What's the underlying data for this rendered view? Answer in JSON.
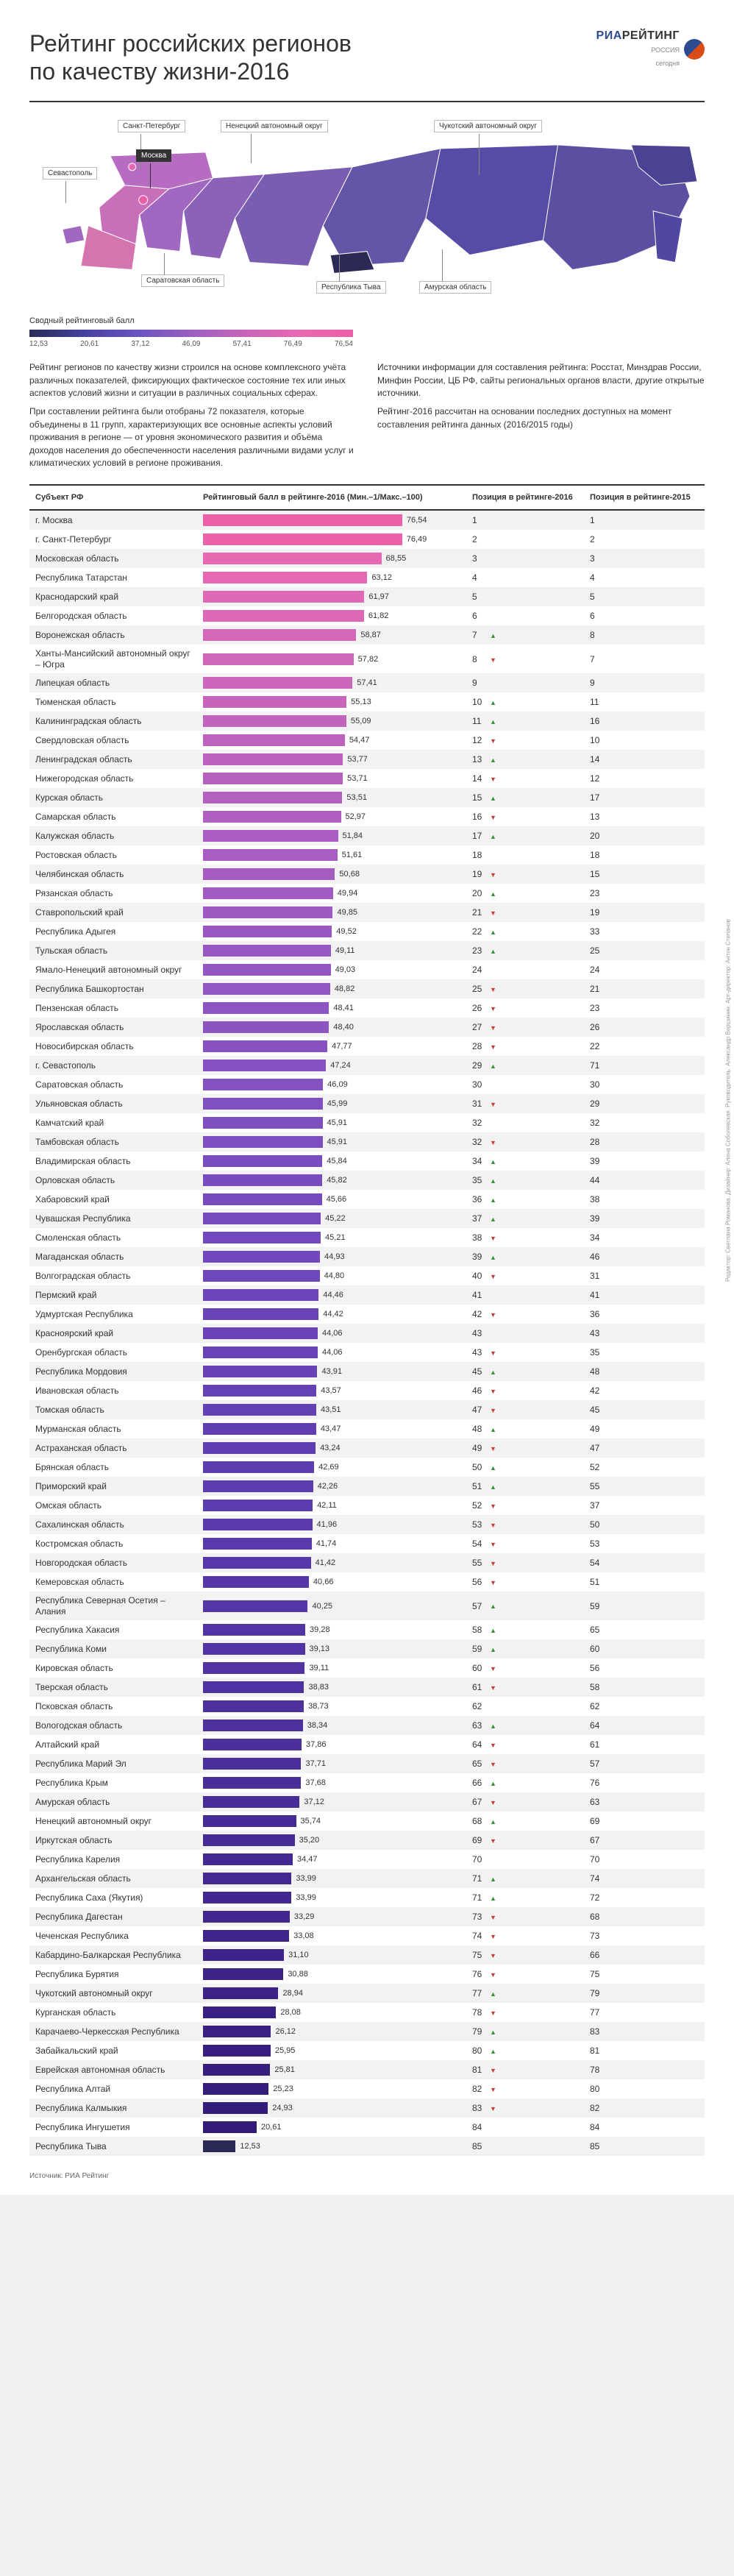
{
  "title": "Рейтинг российских регионов\nпо качеству жизни-2016",
  "logo": {
    "brand": "РИА",
    "brand2": "РЕЙТИНГ",
    "sub1": "РОССИЯ",
    "sub2": "сегодня"
  },
  "map": {
    "callouts": {
      "spb": "Санкт-Петербург",
      "nen": "Ненецкий автономный округ",
      "chk": "Чукотский автономный округ",
      "sev": "Севастополь",
      "msk": "Москва",
      "sar": "Саратовская область",
      "tyv": "Республика Тыва",
      "amu": "Амурская область"
    },
    "map_colors": {
      "far_east": "#5a4fa0",
      "siberia_e": "#6555a8",
      "siberia_w": "#7a5cb0",
      "ural": "#8b62b8",
      "volga": "#a068c0",
      "central": "#c76fb8",
      "nw": "#b66cc0",
      "south": "#d575b0",
      "moscow": "#ec5fa8",
      "spb": "#e868b2",
      "tyva": "#2a2a55",
      "chuk": "#4a4292",
      "kam": "#5048a0",
      "yak": "#554ca5"
    }
  },
  "legend": {
    "label": "Сводный рейтинговый балл",
    "ticks": [
      "12,53",
      "20,61",
      "37,12",
      "46,09",
      "57,41",
      "76,49",
      "76,54"
    ],
    "gradient": [
      "#2a2a55",
      "#4540a0",
      "#6a54c0",
      "#9a5fc0",
      "#c865b8",
      "#e868b2",
      "#ec5fa8"
    ]
  },
  "description": {
    "p1": "Рейтинг регионов по качеству жизни строился на основе комплексного учёта различных показателей, фиксирующих фактическое состояние тех или иных аспектов условий жизни и ситуации в различных социальных сферах.",
    "p2": "При составлении рейтинга были отобраны 72 показателя, которые объединены в 11 групп, характеризующих все основные аспекты условий проживания в регионе — от уровня экономического развития и объёма доходов населения до обеспеченности населения различными видами услуг и климатических условий в регионе проживания.",
    "p3": "Источники информации для составления рейтинга: Росстат, Минздрав России, Минфин России, ЦБ РФ, сайты региональных органов власти, другие открытые источники.",
    "p4": "Рейтинг-2016 рассчитан на основании последних доступных на момент составления рейтинга данных (2016/2015 годы)"
  },
  "columns": {
    "name": "Субъект РФ",
    "score": "Рейтинговый балл в рейтинге-2016 (Мин.–1/Макс.–100)",
    "pos16": "Позиция в рейтинге-2016",
    "pos15": "Позиция в рейтинге-2015"
  },
  "score_min": 0,
  "score_max": 100,
  "rows": [
    {
      "name": "г. Москва",
      "score": "76,54",
      "v": 76.54,
      "color": "#ec5fa8",
      "p16": 1,
      "p15": 1,
      "t": ""
    },
    {
      "name": "г. Санкт-Петербург",
      "score": "76,49",
      "v": 76.49,
      "color": "#ec62aa",
      "p16": 2,
      "p15": 2,
      "t": ""
    },
    {
      "name": "Московская область",
      "score": "68,55",
      "v": 68.55,
      "color": "#e868b2",
      "p16": 3,
      "p15": 3,
      "t": ""
    },
    {
      "name": "Республика Татарстан",
      "score": "63,12",
      "v": 63.12,
      "color": "#e468b4",
      "p16": 4,
      "p15": 4,
      "t": ""
    },
    {
      "name": "Краснодарский край",
      "score": "61,97",
      "v": 61.97,
      "color": "#e069b6",
      "p16": 5,
      "p15": 5,
      "t": ""
    },
    {
      "name": "Белгородская область",
      "score": "61,82",
      "v": 61.82,
      "color": "#dc68b6",
      "p16": 6,
      "p15": 6,
      "t": ""
    },
    {
      "name": "Воронежская область",
      "score": "58,87",
      "v": 58.87,
      "color": "#d567b8",
      "p16": 7,
      "p15": 8,
      "t": "up"
    },
    {
      "name": "Ханты-Мансийский автономный округ – Югра",
      "score": "57,82",
      "v": 57.82,
      "color": "#d066b8",
      "p16": 8,
      "p15": 7,
      "t": "dn"
    },
    {
      "name": "Липецкая область",
      "score": "57,41",
      "v": 57.41,
      "color": "#cc66ba",
      "p16": 9,
      "p15": 9,
      "t": ""
    },
    {
      "name": "Тюменская область",
      "score": "55,13",
      "v": 55.13,
      "color": "#c665bb",
      "p16": 10,
      "p15": 11,
      "t": "up"
    },
    {
      "name": "Калининградская область",
      "score": "55,09",
      "v": 55.09,
      "color": "#c264bc",
      "p16": 11,
      "p15": 16,
      "t": "up"
    },
    {
      "name": "Свердловская область",
      "score": "54,47",
      "v": 54.47,
      "color": "#be63bd",
      "p16": 12,
      "p15": 10,
      "t": "dn"
    },
    {
      "name": "Ленинградская область",
      "score": "53,77",
      "v": 53.77,
      "color": "#ba62be",
      "p16": 13,
      "p15": 14,
      "t": "up"
    },
    {
      "name": "Нижегородская область",
      "score": "53,71",
      "v": 53.71,
      "color": "#b761bf",
      "p16": 14,
      "p15": 12,
      "t": "dn"
    },
    {
      "name": "Курская область",
      "score": "53,51",
      "v": 53.51,
      "color": "#b360c0",
      "p16": 15,
      "p15": 17,
      "t": "up"
    },
    {
      "name": "Самарская область",
      "score": "52,97",
      "v": 52.97,
      "color": "#af5fc0",
      "p16": 16,
      "p15": 13,
      "t": "dn"
    },
    {
      "name": "Калужская область",
      "score": "51,84",
      "v": 51.84,
      "color": "#ab5ec1",
      "p16": 17,
      "p15": 20,
      "t": "up"
    },
    {
      "name": "Ростовская область",
      "score": "51,61",
      "v": 51.61,
      "color": "#a85dc1",
      "p16": 18,
      "p15": 18,
      "t": ""
    },
    {
      "name": "Челябинская область",
      "score": "50,68",
      "v": 50.68,
      "color": "#a45cc2",
      "p16": 19,
      "p15": 15,
      "t": "dn"
    },
    {
      "name": "Рязанская область",
      "score": "49,94",
      "v": 49.94,
      "color": "#a15bc2",
      "p16": 20,
      "p15": 23,
      "t": "up"
    },
    {
      "name": "Ставропольский край",
      "score": "49,85",
      "v": 49.85,
      "color": "#9d5ac2",
      "p16": 21,
      "p15": 19,
      "t": "dn"
    },
    {
      "name": "Республика Адыгея",
      "score": "49,52",
      "v": 49.52,
      "color": "#9a59c2",
      "p16": 22,
      "p15": 33,
      "t": "up"
    },
    {
      "name": "Тульская область",
      "score": "49,11",
      "v": 49.11,
      "color": "#9758c2",
      "p16": 23,
      "p15": 25,
      "t": "up"
    },
    {
      "name": "Ямало-Ненецкий автономный округ",
      "score": "49,03",
      "v": 49.03,
      "color": "#9457c2",
      "p16": 24,
      "p15": 24,
      "t": ""
    },
    {
      "name": "Республика Башкортостан",
      "score": "48,82",
      "v": 48.82,
      "color": "#9156c2",
      "p16": 25,
      "p15": 21,
      "t": "dn"
    },
    {
      "name": "Пензенская область",
      "score": "48,41",
      "v": 48.41,
      "color": "#8e55c2",
      "p16": 26,
      "p15": 23,
      "t": "dn"
    },
    {
      "name": "Ярославская область",
      "score": "48,40",
      "v": 48.4,
      "color": "#8b54c1",
      "p16": 27,
      "p15": 26,
      "t": "dn"
    },
    {
      "name": "Новосибирская область",
      "score": "47,77",
      "v": 47.77,
      "color": "#8853c1",
      "p16": 28,
      "p15": 22,
      "t": "dn"
    },
    {
      "name": "г. Севастополь",
      "score": "47,24",
      "v": 47.24,
      "color": "#8652c1",
      "p16": 29,
      "p15": 71,
      "t": "up"
    },
    {
      "name": "Саратовская область",
      "score": "46,09",
      "v": 46.09,
      "color": "#8351c0",
      "p16": 30,
      "p15": 30,
      "t": ""
    },
    {
      "name": "Ульяновская область",
      "score": "45,99",
      "v": 45.99,
      "color": "#8150c0",
      "p16": 31,
      "p15": 29,
      "t": "dn"
    },
    {
      "name": "Камчатский край",
      "score": "45,91",
      "v": 45.91,
      "color": "#7e4fbf",
      "p16": 32,
      "p15": 32,
      "t": ""
    },
    {
      "name": "Тамбовская область",
      "score": "45,91",
      "v": 45.91,
      "color": "#7c4ebf",
      "p16": 32,
      "p15": 28,
      "t": "dn"
    },
    {
      "name": "Владимирская область",
      "score": "45,84",
      "v": 45.84,
      "color": "#7a4dbe",
      "p16": 34,
      "p15": 39,
      "t": "up"
    },
    {
      "name": "Орловская область",
      "score": "45,82",
      "v": 45.82,
      "color": "#784cbe",
      "p16": 35,
      "p15": 44,
      "t": "up"
    },
    {
      "name": "Хабаровский край",
      "score": "45,66",
      "v": 45.66,
      "color": "#764bbd",
      "p16": 36,
      "p15": 38,
      "t": "up"
    },
    {
      "name": "Чувашская Республика",
      "score": "45,22",
      "v": 45.22,
      "color": "#744abc",
      "p16": 37,
      "p15": 39,
      "t": "up"
    },
    {
      "name": "Смоленская область",
      "score": "45,21",
      "v": 45.21,
      "color": "#7249bc",
      "p16": 38,
      "p15": 34,
      "t": "dn"
    },
    {
      "name": "Магаданская область",
      "score": "44,93",
      "v": 44.93,
      "color": "#7048bb",
      "p16": 39,
      "p15": 46,
      "t": "up"
    },
    {
      "name": "Волгоградская область",
      "score": "44,80",
      "v": 44.8,
      "color": "#6e47ba",
      "p16": 40,
      "p15": 31,
      "t": "dn"
    },
    {
      "name": "Пермский край",
      "score": "44,46",
      "v": 44.46,
      "color": "#6c46b9",
      "p16": 41,
      "p15": 41,
      "t": ""
    },
    {
      "name": "Удмуртская Республика",
      "score": "44,42",
      "v": 44.42,
      "color": "#6a45b8",
      "p16": 42,
      "p15": 36,
      "t": "dn"
    },
    {
      "name": "Красноярский край",
      "score": "44,06",
      "v": 44.06,
      "color": "#6944b7",
      "p16": 43,
      "p15": 43,
      "t": ""
    },
    {
      "name": "Оренбургская область",
      "score": "44,06",
      "v": 44.06,
      "color": "#6743b6",
      "p16": 43,
      "p15": 35,
      "t": "dn"
    },
    {
      "name": "Республика Мордовия",
      "score": "43,91",
      "v": 43.91,
      "color": "#6642b5",
      "p16": 45,
      "p15": 48,
      "t": "up"
    },
    {
      "name": "Ивановская область",
      "score": "43,57",
      "v": 43.57,
      "color": "#6441b4",
      "p16": 46,
      "p15": 42,
      "t": "dn"
    },
    {
      "name": "Томская область",
      "score": "43,51",
      "v": 43.51,
      "color": "#6340b3",
      "p16": 47,
      "p15": 45,
      "t": "dn"
    },
    {
      "name": "Мурманская область",
      "score": "43,47",
      "v": 43.47,
      "color": "#613fb2",
      "p16": 48,
      "p15": 49,
      "t": "up"
    },
    {
      "name": "Астраханская область",
      "score": "43,24",
      "v": 43.24,
      "color": "#603eb1",
      "p16": 49,
      "p15": 47,
      "t": "dn"
    },
    {
      "name": "Брянская область",
      "score": "42,69",
      "v": 42.69,
      "color": "#5e3db0",
      "p16": 50,
      "p15": 52,
      "t": "up"
    },
    {
      "name": "Приморский край",
      "score": "42,26",
      "v": 42.26,
      "color": "#5d3caf",
      "p16": 51,
      "p15": 55,
      "t": "up"
    },
    {
      "name": "Омская область",
      "score": "42,11",
      "v": 42.11,
      "color": "#5b3bad",
      "p16": 52,
      "p15": 37,
      "t": "dn"
    },
    {
      "name": "Сахалинская область",
      "score": "41,96",
      "v": 41.96,
      "color": "#5a3aac",
      "p16": 53,
      "p15": 50,
      "t": "dn"
    },
    {
      "name": "Костромская область",
      "score": "41,74",
      "v": 41.74,
      "color": "#5939ab",
      "p16": 54,
      "p15": 53,
      "t": "dn"
    },
    {
      "name": "Новгородская область",
      "score": "41,42",
      "v": 41.42,
      "color": "#5738a9",
      "p16": 55,
      "p15": 54,
      "t": "dn"
    },
    {
      "name": "Кемеровская область",
      "score": "40,66",
      "v": 40.66,
      "color": "#5637a8",
      "p16": 56,
      "p15": 51,
      "t": "dn"
    },
    {
      "name": "Республика Северная Осетия – Алания",
      "score": "40,25",
      "v": 40.25,
      "color": "#5536a7",
      "p16": 57,
      "p15": 59,
      "t": "up"
    },
    {
      "name": "Республика Хакасия",
      "score": "39,28",
      "v": 39.28,
      "color": "#5335a5",
      "p16": 58,
      "p15": 65,
      "t": "up"
    },
    {
      "name": "Республика Коми",
      "score": "39,13",
      "v": 39.13,
      "color": "#5234a4",
      "p16": 59,
      "p15": 60,
      "t": "up"
    },
    {
      "name": "Кировская область",
      "score": "39,11",
      "v": 39.11,
      "color": "#5133a2",
      "p16": 60,
      "p15": 56,
      "t": "dn"
    },
    {
      "name": "Тверская область",
      "score": "38,83",
      "v": 38.83,
      "color": "#4f32a1",
      "p16": 61,
      "p15": 58,
      "t": "dn"
    },
    {
      "name": "Псковская область",
      "score": "38,73",
      "v": 38.73,
      "color": "#4e319f",
      "p16": 62,
      "p15": 62,
      "t": ""
    },
    {
      "name": "Вологодская область",
      "score": "38,34",
      "v": 38.34,
      "color": "#4d309e",
      "p16": 63,
      "p15": 64,
      "t": "up"
    },
    {
      "name": "Алтайский край",
      "score": "37,86",
      "v": 37.86,
      "color": "#4b2f9c",
      "p16": 64,
      "p15": 61,
      "t": "dn"
    },
    {
      "name": "Республика Марий Эл",
      "score": "37,71",
      "v": 37.71,
      "color": "#4a2e9b",
      "p16": 65,
      "p15": 57,
      "t": "dn"
    },
    {
      "name": "Республика Крым",
      "score": "37,68",
      "v": 37.68,
      "color": "#492d99",
      "p16": 66,
      "p15": 76,
      "t": "up"
    },
    {
      "name": "Амурская область",
      "score": "37,12",
      "v": 37.12,
      "color": "#482c97",
      "p16": 67,
      "p15": 63,
      "t": "dn"
    },
    {
      "name": "Ненецкий автономный округ",
      "score": "35,74",
      "v": 35.74,
      "color": "#462b96",
      "p16": 68,
      "p15": 69,
      "t": "up"
    },
    {
      "name": "Иркутская область",
      "score": "35,20",
      "v": 35.2,
      "color": "#452a94",
      "p16": 69,
      "p15": 67,
      "t": "dn"
    },
    {
      "name": "Республика Карелия",
      "score": "34,47",
      "v": 34.47,
      "color": "#442992",
      "p16": 70,
      "p15": 70,
      "t": ""
    },
    {
      "name": "Архангельская область",
      "score": "33,99",
      "v": 33.99,
      "color": "#432891",
      "p16": 71,
      "p15": 74,
      "t": "up"
    },
    {
      "name": "Республика Саха (Якутия)",
      "score": "33,99",
      "v": 33.99,
      "color": "#41278f",
      "p16": 71,
      "p15": 72,
      "t": "up"
    },
    {
      "name": "Республика Дагестан",
      "score": "33,29",
      "v": 33.29,
      "color": "#40268d",
      "p16": 73,
      "p15": 68,
      "t": "dn"
    },
    {
      "name": "Чеченская Республика",
      "score": "33,08",
      "v": 33.08,
      "color": "#3f258b",
      "p16": 74,
      "p15": 73,
      "t": "dn"
    },
    {
      "name": "Кабардино-Балкарская Республика",
      "score": "31,10",
      "v": 31.1,
      "color": "#3e248a",
      "p16": 75,
      "p15": 66,
      "t": "dn"
    },
    {
      "name": "Республика Бурятия",
      "score": "30,88",
      "v": 30.88,
      "color": "#3c2388",
      "p16": 76,
      "p15": 75,
      "t": "dn"
    },
    {
      "name": "Чукотский автономный округ",
      "score": "28,94",
      "v": 28.94,
      "color": "#3b2286",
      "p16": 77,
      "p15": 79,
      "t": "up"
    },
    {
      "name": "Курганская область",
      "score": "28,08",
      "v": 28.08,
      "color": "#3a2184",
      "p16": 78,
      "p15": 77,
      "t": "dn"
    },
    {
      "name": "Карачаево-Черкесская Республика",
      "score": "26,12",
      "v": 26.12,
      "color": "#392082",
      "p16": 79,
      "p15": 83,
      "t": "up"
    },
    {
      "name": "Забайкальский край",
      "score": "25,95",
      "v": 25.95,
      "color": "#371f80",
      "p16": 80,
      "p15": 81,
      "t": "up"
    },
    {
      "name": "Еврейская автономная область",
      "score": "25,81",
      "v": 25.81,
      "color": "#361e7e",
      "p16": 81,
      "p15": 78,
      "t": "dn"
    },
    {
      "name": "Республика Алтай",
      "score": "25,23",
      "v": 25.23,
      "color": "#351d7c",
      "p16": 82,
      "p15": 80,
      "t": "dn"
    },
    {
      "name": "Республика Калмыкия",
      "score": "24,93",
      "v": 24.93,
      "color": "#341c7a",
      "p16": 83,
      "p15": 82,
      "t": "dn"
    },
    {
      "name": "Республика Ингушетия",
      "score": "20,61",
      "v": 20.61,
      "color": "#321b78",
      "p16": 84,
      "p15": 84,
      "t": ""
    },
    {
      "name": "Республика Тыва",
      "score": "12,53",
      "v": 12.53,
      "color": "#2a2a55",
      "p16": 85,
      "p15": 85,
      "t": ""
    }
  ],
  "footer": {
    "source": "Источник: РИА Рейтинг"
  },
  "side_credit": "Редактор: Светлана Романова. Дизайнер: Алена Соболевская. Руководитель: Александр Вершинин. Арт-директор: Антон Степанов"
}
